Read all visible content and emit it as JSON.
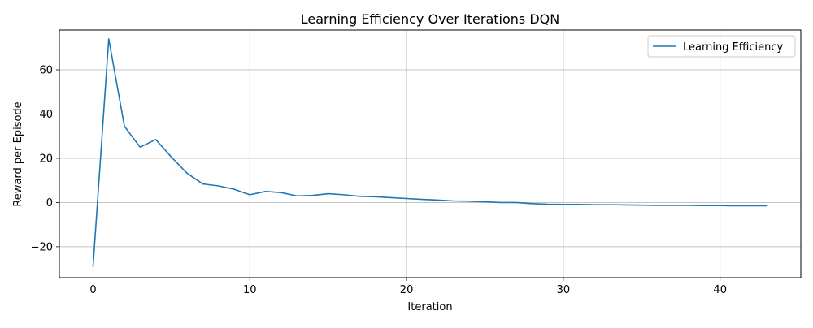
{
  "chart_data": {
    "type": "line",
    "title": "Learning Efficiency Over Iterations DQN",
    "xlabel": "Iteration",
    "ylabel": "Reward per Episode",
    "xlim": [
      -2.15,
      45.15
    ],
    "ylim": [
      -34.0,
      78.0
    ],
    "xticks": [
      0,
      10,
      20,
      30,
      40
    ],
    "yticks": [
      -20,
      0,
      20,
      40,
      60
    ],
    "xtick_labels": [
      "0",
      "10",
      "20",
      "30",
      "40"
    ],
    "ytick_labels": [
      "−20",
      "0",
      "20",
      "40",
      "60"
    ],
    "grid": true,
    "legend_position": "top-right",
    "series": [
      {
        "name": "Learning Efficiency",
        "color": "#1f77b4",
        "x": [
          0,
          1,
          2,
          3,
          4,
          5,
          6,
          7,
          8,
          9,
          10,
          11,
          12,
          13,
          14,
          15,
          16,
          17,
          18,
          19,
          20,
          21,
          22,
          23,
          24,
          25,
          26,
          27,
          28,
          29,
          30,
          31,
          32,
          33,
          34,
          35,
          36,
          37,
          38,
          39,
          40,
          41,
          42,
          43
        ],
        "y": [
          -29,
          74,
          34.5,
          25,
          28.5,
          20.5,
          13.2,
          8.4,
          7.5,
          6,
          3.5,
          5,
          4.5,
          3,
          3.2,
          4,
          3.5,
          2.8,
          2.6,
          2.2,
          1.8,
          1.4,
          1.1,
          0.7,
          0.6,
          0.3,
          0,
          0,
          -0.5,
          -0.8,
          -0.9,
          -0.9,
          -1.0,
          -1.0,
          -1.1,
          -1.2,
          -1.3,
          -1.3,
          -1.3,
          -1.4,
          -1.4,
          -1.5,
          -1.5,
          -1.5
        ]
      }
    ]
  }
}
